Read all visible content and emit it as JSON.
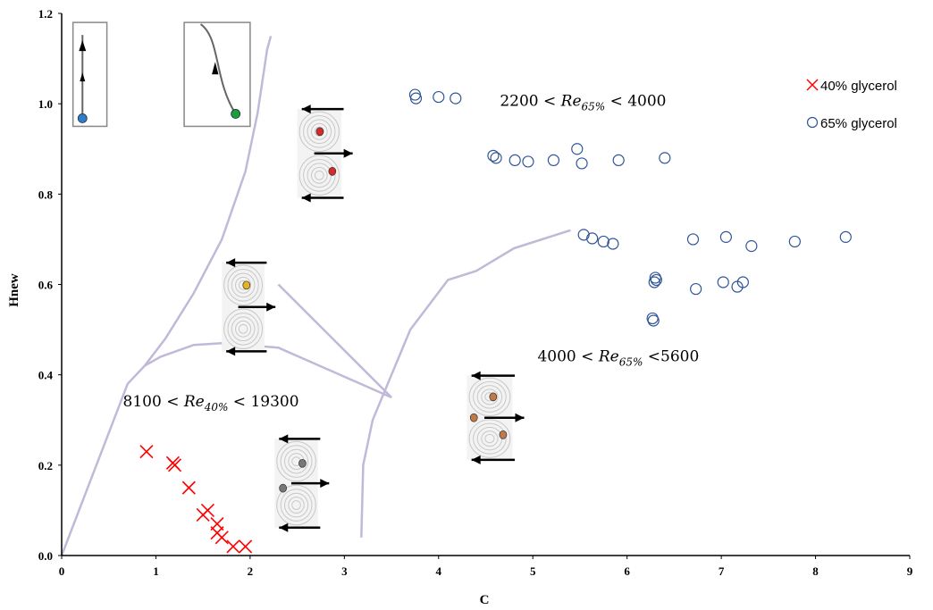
{
  "chart_data": {
    "type": "scatter",
    "xlabel": "C",
    "ylabel": "Hnew",
    "xlim": [
      0,
      9
    ],
    "ylim": [
      0,
      1.2
    ],
    "x_ticks": [
      "0",
      "1",
      "2",
      "3",
      "4",
      "5",
      "6",
      "7",
      "8",
      "9"
    ],
    "y_ticks": [
      "0.0",
      "0.2",
      "0.4",
      "0.6",
      "0.8",
      "1.0",
      "1.2"
    ],
    "grid": false,
    "legend_position": "top-right",
    "series": [
      {
        "name": "40% glycerol",
        "marker": "x",
        "color": "#ff0000",
        "points": [
          [
            0.9,
            0.23
          ],
          [
            1.18,
            0.205
          ],
          [
            1.2,
            0.2
          ],
          [
            1.35,
            0.15
          ],
          [
            1.5,
            0.09
          ],
          [
            1.55,
            0.1
          ],
          [
            1.65,
            0.07
          ],
          [
            1.65,
            0.05
          ],
          [
            1.7,
            0.04
          ],
          [
            1.82,
            0.02
          ],
          [
            1.95,
            0.02
          ]
        ]
      },
      {
        "name": "65% glycerol",
        "marker": "o",
        "color": "#2f5597",
        "points": [
          [
            3.75,
            1.02
          ],
          [
            3.76,
            1.012
          ],
          [
            4.0,
            1.015
          ],
          [
            4.18,
            1.012
          ],
          [
            4.58,
            0.885
          ],
          [
            4.61,
            0.88
          ],
          [
            4.81,
            0.875
          ],
          [
            4.95,
            0.872
          ],
          [
            5.22,
            0.875
          ],
          [
            5.47,
            0.9
          ],
          [
            5.52,
            0.868
          ],
          [
            5.91,
            0.875
          ],
          [
            6.4,
            0.88
          ],
          [
            5.54,
            0.71
          ],
          [
            5.63,
            0.702
          ],
          [
            5.75,
            0.695
          ],
          [
            5.85,
            0.69
          ],
          [
            6.7,
            0.7
          ],
          [
            7.05,
            0.705
          ],
          [
            7.32,
            0.685
          ],
          [
            7.78,
            0.695
          ],
          [
            8.32,
            0.705
          ],
          [
            6.3,
            0.615
          ],
          [
            6.31,
            0.61
          ],
          [
            6.29,
            0.605
          ],
          [
            6.73,
            0.59
          ],
          [
            7.02,
            0.605
          ],
          [
            7.17,
            0.595
          ],
          [
            7.23,
            0.605
          ],
          [
            6.27,
            0.525
          ],
          [
            6.28,
            0.52
          ]
        ]
      }
    ],
    "boundaries": [
      [
        [
          0,
          0
        ],
        [
          0.7,
          0.38
        ],
        [
          0.88,
          0.42
        ],
        [
          1.1,
          0.48
        ],
        [
          1.4,
          0.58
        ],
        [
          1.7,
          0.7
        ],
        [
          1.95,
          0.85
        ],
        [
          2.08,
          0.98
        ],
        [
          2.18,
          1.12
        ],
        [
          2.22,
          1.15
        ]
      ],
      [
        [
          0.88,
          0.42
        ],
        [
          1.05,
          0.44
        ],
        [
          1.4,
          0.466
        ],
        [
          1.7,
          0.47
        ]
      ],
      [
        [
          1.7,
          0.47
        ],
        [
          2.3,
          0.46
        ],
        [
          3.5,
          0.35
        ]
      ],
      [
        [
          2.3,
          0.6
        ],
        [
          3.5,
          0.35
        ]
      ],
      [
        [
          3.18,
          0.04
        ],
        [
          3.2,
          0.2
        ],
        [
          3.3,
          0.3
        ],
        [
          3.7,
          0.5
        ],
        [
          4.1,
          0.61
        ],
        [
          4.4,
          0.63
        ],
        [
          4.8,
          0.68
        ],
        [
          5.4,
          0.72
        ]
      ]
    ],
    "annotations": [
      {
        "pre": "8100 < ",
        "re": "Re",
        "sub": "40%",
        "post": " < 19300",
        "x": 0.65,
        "y": 0.33
      },
      {
        "pre": "2200 < ",
        "re": "Re",
        "sub": "65%",
        "post": " < 4000",
        "x": 4.65,
        "y": 0.995
      },
      {
        "pre": "4000 < ",
        "re": "Re",
        "sub": "65%",
        "post": " <5600",
        "x": 5.05,
        "y": 0.43
      }
    ],
    "insets": [
      {
        "kind": "trajectory",
        "x0": 0.12,
        "x1": 0.48,
        "y0": 0.95,
        "y1": 1.18,
        "dot": "#2f7dc9",
        "path": "straight"
      },
      {
        "kind": "trajectory",
        "x0": 1.3,
        "x1": 2.0,
        "y0": 0.95,
        "y1": 1.18,
        "dot": "#1e9e3a",
        "path": "curved"
      },
      {
        "kind": "vortex",
        "x0": 2.5,
        "x1": 3.1,
        "y0": 0.78,
        "y1": 1.0,
        "flow": "lrl",
        "dots": [
          "#d62a2a",
          "#d62a2a"
        ]
      },
      {
        "kind": "vortex",
        "x0": 1.7,
        "x1": 2.28,
        "y0": 0.44,
        "y1": 0.66,
        "flow": "lrl",
        "dots": [
          "#e6b422"
        ]
      },
      {
        "kind": "vortex",
        "x0": 4.3,
        "x1": 4.92,
        "y0": 0.2,
        "y1": 0.41,
        "flow": "lrl",
        "dots": [
          "#c07a48",
          "#c07a48",
          "#c07a48"
        ]
      },
      {
        "kind": "vortex",
        "x0": 2.26,
        "x1": 2.85,
        "y0": 0.05,
        "y1": 0.27,
        "flow": "lrl",
        "dots": [
          "#777777",
          "#777777"
        ]
      }
    ]
  }
}
